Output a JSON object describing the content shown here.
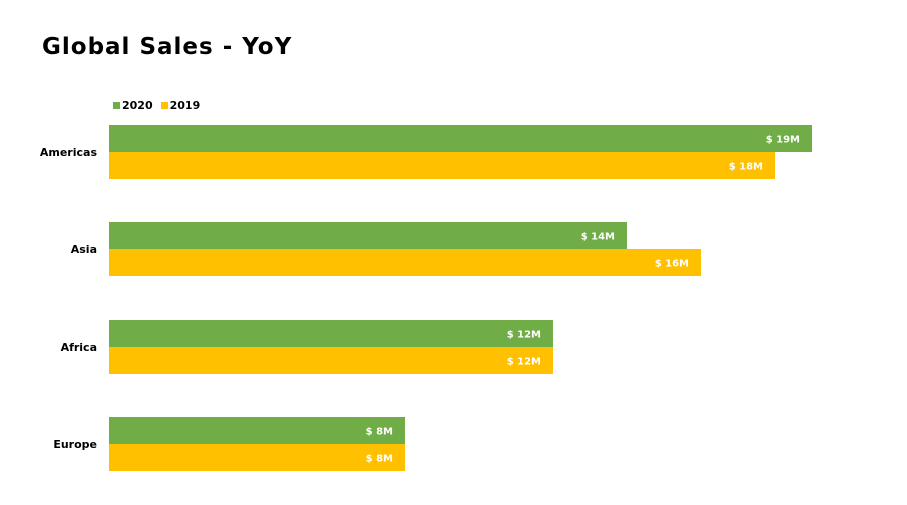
{
  "chart_data": {
    "type": "bar",
    "orientation": "horizontal",
    "title": "Global Sales - YoY",
    "categories": [
      "Americas",
      "Asia",
      "Africa",
      "Europe"
    ],
    "series": [
      {
        "name": "2020",
        "color": "#70ad47",
        "values": [
          19,
          14,
          12,
          8
        ],
        "labels": [
          "$ 19M",
          "$ 14M",
          "$ 12M",
          "$ 8M"
        ]
      },
      {
        "name": "2019",
        "color": "#ffc000",
        "values": [
          18,
          16,
          12,
          8
        ],
        "labels": [
          "$ 18M",
          "$ 16M",
          "$ 12M",
          "$ 8M"
        ]
      }
    ],
    "xlim": [
      0,
      21
    ],
    "grid": false,
    "legend_position": "top-left"
  }
}
